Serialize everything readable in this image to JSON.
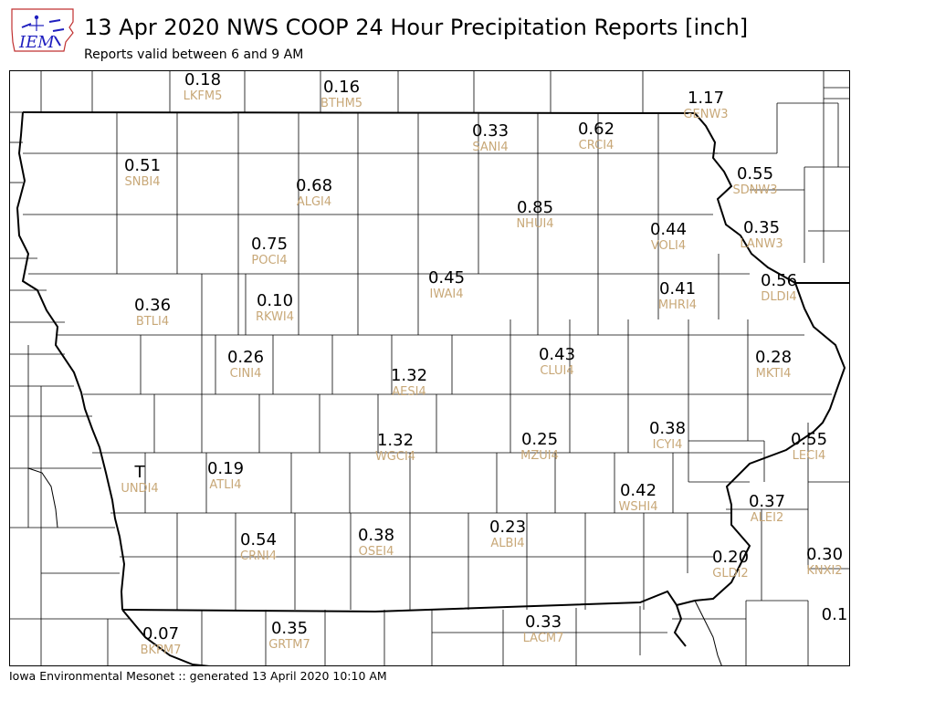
{
  "title": "13 Apr 2020 NWS COOP 24 Hour Precipitation Reports [inch]",
  "subtitle": "Reports valid between 6 and 9 AM",
  "footer": "Iowa Environmental Mesonet :: generated 13 April 2020 10:10 AM",
  "logo": {
    "text": "IEM",
    "text_color": "#1f1fbf",
    "outline_color": "#c03030"
  },
  "colors": {
    "value": "#000000",
    "station_id": "#c8a878",
    "county_line": "#000000",
    "background": "#ffffff"
  },
  "stations": [
    {
      "value": "0.18",
      "id": "LKFM5"
    },
    {
      "value": "0.16",
      "id": "BTHM5"
    },
    {
      "value": "1.17",
      "id": "GENW3"
    },
    {
      "value": "0.33",
      "id": "SANI4"
    },
    {
      "value": "0.62",
      "id": "CRCI4"
    },
    {
      "value": "0.51",
      "id": "SNBI4"
    },
    {
      "value": "0.68",
      "id": "ALGI4"
    },
    {
      "value": "0.55",
      "id": "SDNW3"
    },
    {
      "value": "0.85",
      "id": "NHUI4"
    },
    {
      "value": "0.44",
      "id": "VOLI4"
    },
    {
      "value": "0.35",
      "id": "LANW3"
    },
    {
      "value": "0.75",
      "id": "POCI4"
    },
    {
      "value": "0.45",
      "id": "IWAI4"
    },
    {
      "value": "0.56",
      "id": "DLDI4"
    },
    {
      "value": "0.36",
      "id": "BTLI4"
    },
    {
      "value": "0.10",
      "id": "RKWI4"
    },
    {
      "value": "0.41",
      "id": "MHRI4"
    },
    {
      "value": "0.26",
      "id": "CINI4"
    },
    {
      "value": "0.43",
      "id": "CLUI4"
    },
    {
      "value": "0.28",
      "id": "MKTI4"
    },
    {
      "value": "1.32",
      "id": "AESI4"
    },
    {
      "value": "0.38",
      "id": "ICYI4"
    },
    {
      "value": "1.32",
      "id": "WGCI4"
    },
    {
      "value": "0.25",
      "id": "MZUI4"
    },
    {
      "value": "0.55",
      "id": "LECI4"
    },
    {
      "value": "T",
      "id": "UNDI4"
    },
    {
      "value": "0.19",
      "id": "ATLI4"
    },
    {
      "value": "0.42",
      "id": "WSHI4"
    },
    {
      "value": "0.37",
      "id": "ALEI2"
    },
    {
      "value": "0.54",
      "id": "CRNI4"
    },
    {
      "value": "0.38",
      "id": "OSEI4"
    },
    {
      "value": "0.23",
      "id": "ALBI4"
    },
    {
      "value": "0.20",
      "id": "GLDI2"
    },
    {
      "value": "0.30",
      "id": "KNXI2"
    },
    {
      "value": "0.07",
      "id": "BKPM7"
    },
    {
      "value": "0.35",
      "id": "GRTM7"
    },
    {
      "value": "0.33",
      "id": "LACM7"
    },
    {
      "value": "0.1",
      "id": ""
    }
  ]
}
